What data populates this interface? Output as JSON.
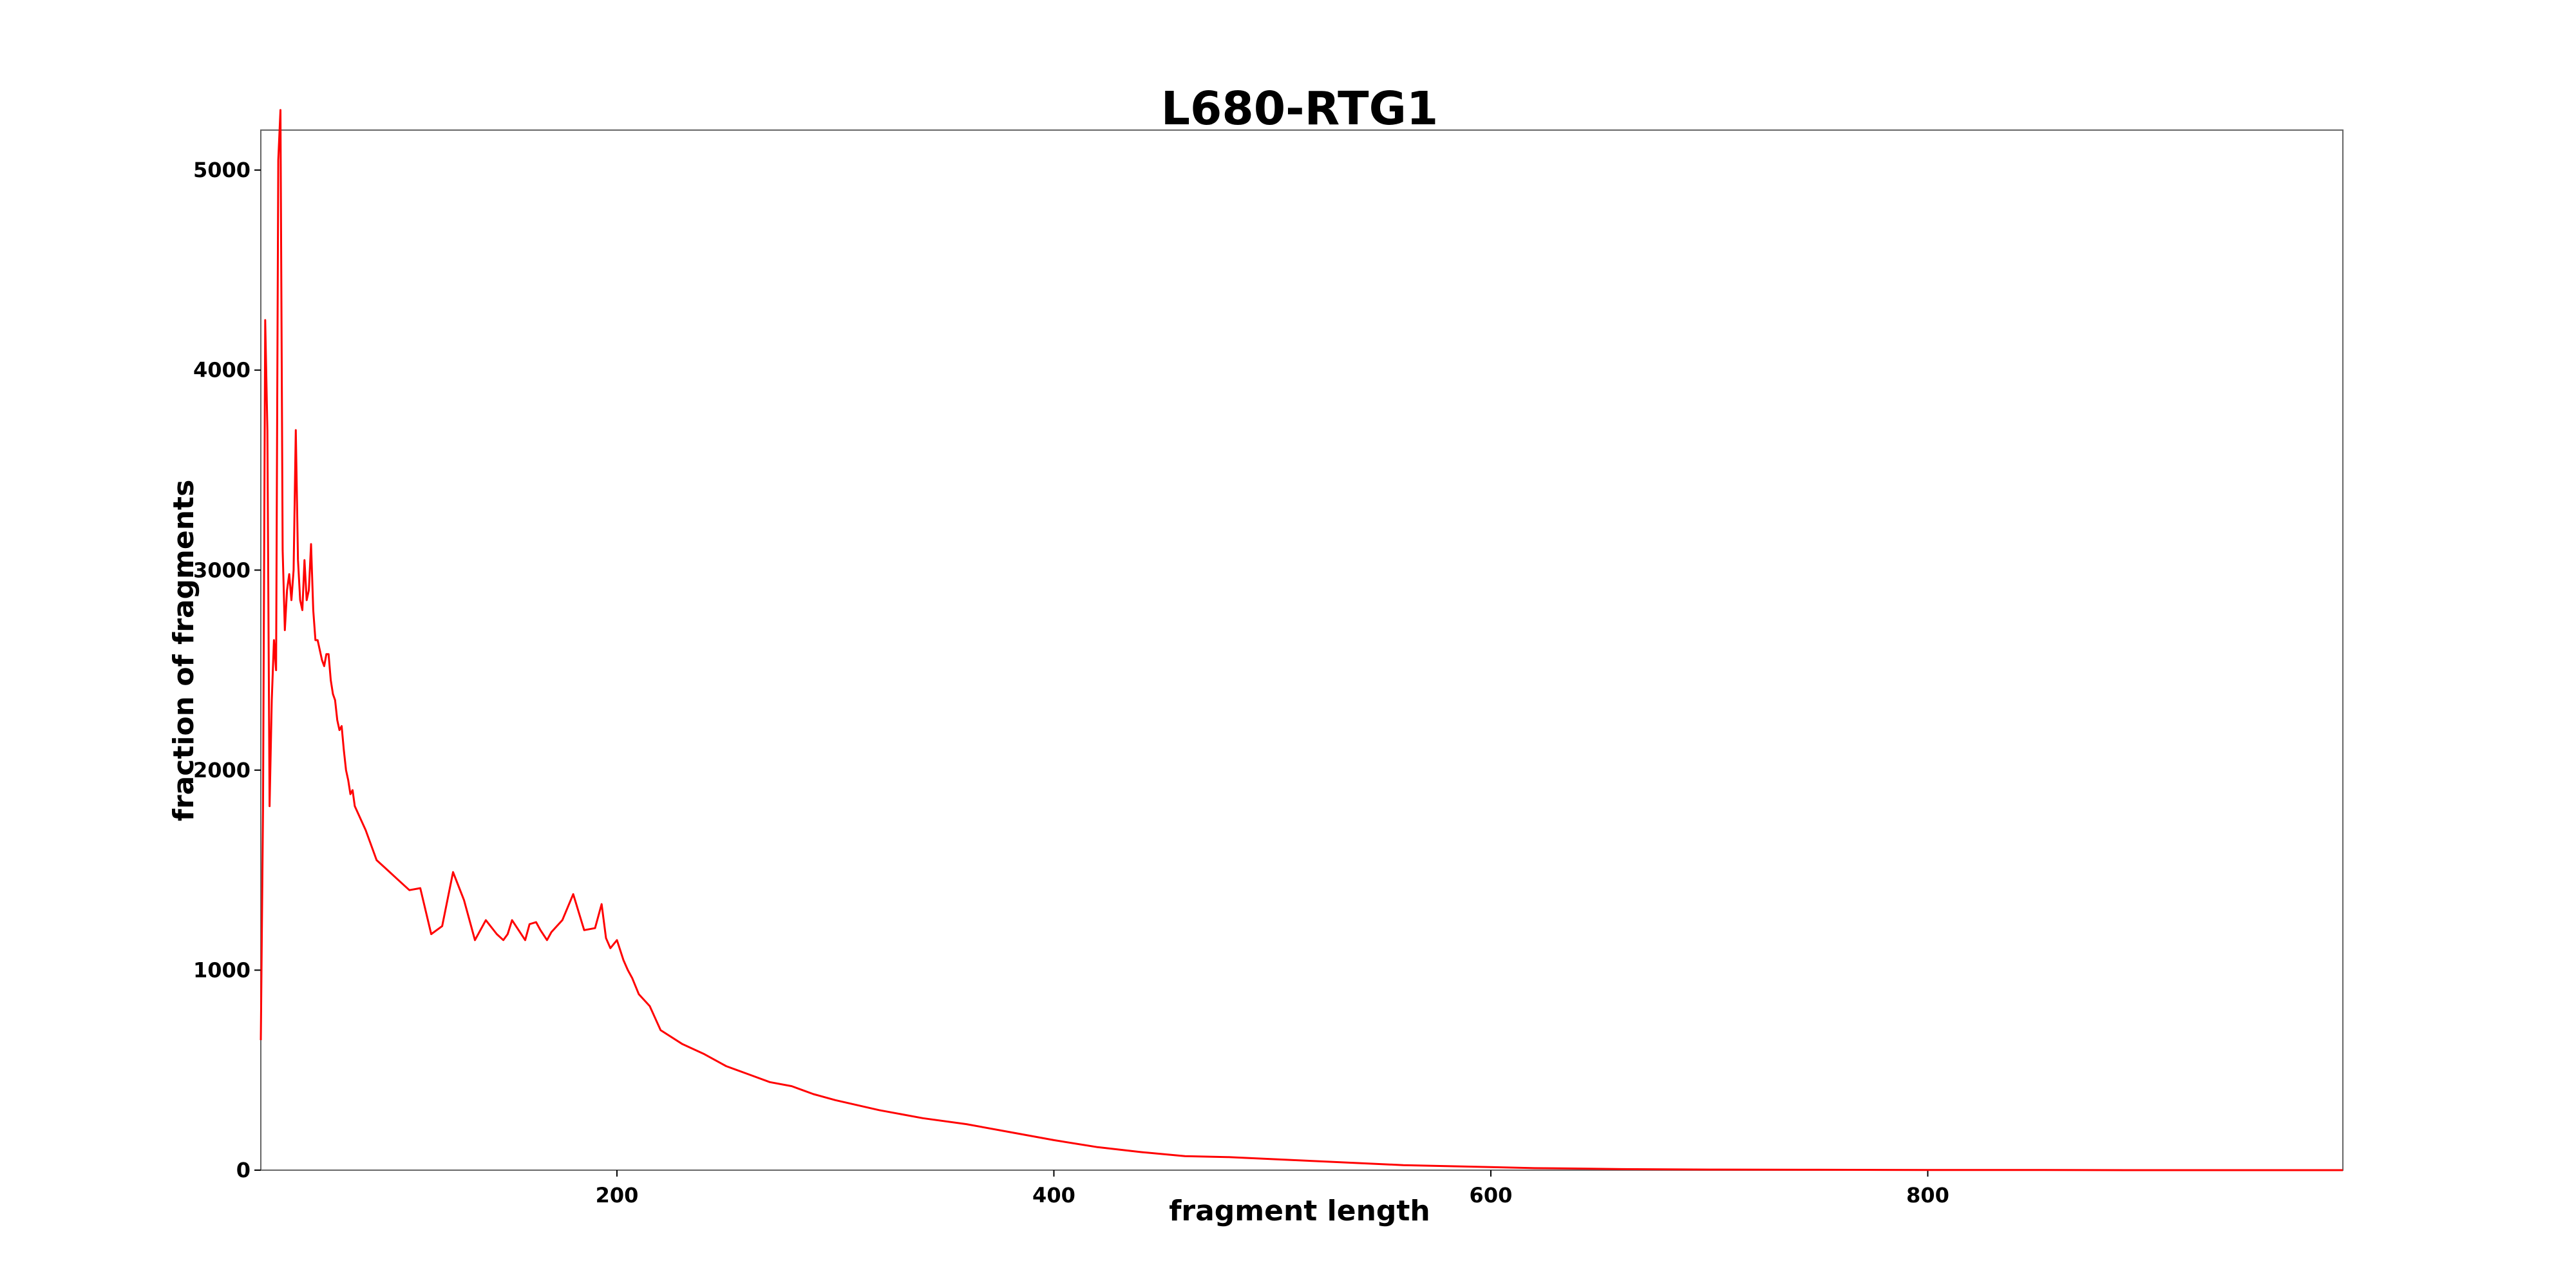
{
  "chart_data": {
    "type": "line",
    "title": "L680-RTG1",
    "xlabel": "fragment length",
    "ylabel": "fraction of fragments",
    "xlim": [
      37,
      990
    ],
    "ylim": [
      0,
      5200
    ],
    "xticks": [
      200,
      400,
      600,
      800
    ],
    "yticks": [
      0,
      1000,
      2000,
      3000,
      4000,
      5000
    ],
    "grid": false,
    "line_color": "#ff0000",
    "series": [
      {
        "x": [
          37,
          38,
          39,
          40,
          41,
          42,
          43,
          44,
          45,
          46,
          47,
          48,
          49,
          50,
          51,
          52,
          53,
          54,
          55,
          56,
          57,
          58,
          59,
          60,
          61,
          62,
          63,
          64,
          65,
          66,
          67,
          68,
          69,
          70,
          71,
          72,
          73,
          74,
          75,
          76,
          77,
          78,
          79,
          80,
          85,
          90,
          95,
          100,
          105,
          110,
          115,
          120,
          125,
          130,
          135,
          140,
          145,
          148,
          150,
          152,
          155,
          158,
          160,
          163,
          165,
          168,
          170,
          175,
          180,
          185,
          190,
          193,
          195,
          197,
          200,
          203,
          205,
          207,
          210,
          215,
          220,
          230,
          240,
          250,
          260,
          270,
          280,
          285,
          290,
          300,
          320,
          340,
          360,
          380,
          400,
          420,
          440,
          460,
          480,
          500,
          520,
          540,
          560,
          580,
          600,
          620,
          640,
          660,
          680,
          700,
          750,
          800,
          850,
          900,
          950,
          990
        ],
        "y": [
          650,
          1800,
          4250,
          3700,
          1820,
          2350,
          2650,
          2500,
          5050,
          5300,
          3100,
          2700,
          2900,
          2980,
          2850,
          3000,
          3700,
          3050,
          2850,
          2800,
          3050,
          2850,
          2900,
          3130,
          2800,
          2650,
          2650,
          2600,
          2550,
          2520,
          2580,
          2580,
          2450,
          2380,
          2350,
          2250,
          2200,
          2220,
          2100,
          2000,
          1950,
          1880,
          1900,
          1820,
          1700,
          1550,
          1500,
          1450,
          1400,
          1410,
          1180,
          1220,
          1490,
          1350,
          1150,
          1250,
          1180,
          1150,
          1180,
          1250,
          1200,
          1150,
          1230,
          1240,
          1200,
          1150,
          1190,
          1250,
          1380,
          1200,
          1210,
          1330,
          1160,
          1110,
          1150,
          1050,
          1000,
          960,
          880,
          820,
          700,
          630,
          580,
          520,
          480,
          440,
          420,
          400,
          380,
          350,
          300,
          260,
          230,
          190,
          150,
          115,
          90,
          70,
          65,
          55,
          45,
          35,
          25,
          20,
          15,
          10,
          8,
          5,
          4,
          3,
          2,
          1,
          1,
          0,
          0,
          0
        ],
        "color": "#ff0000"
      }
    ]
  }
}
